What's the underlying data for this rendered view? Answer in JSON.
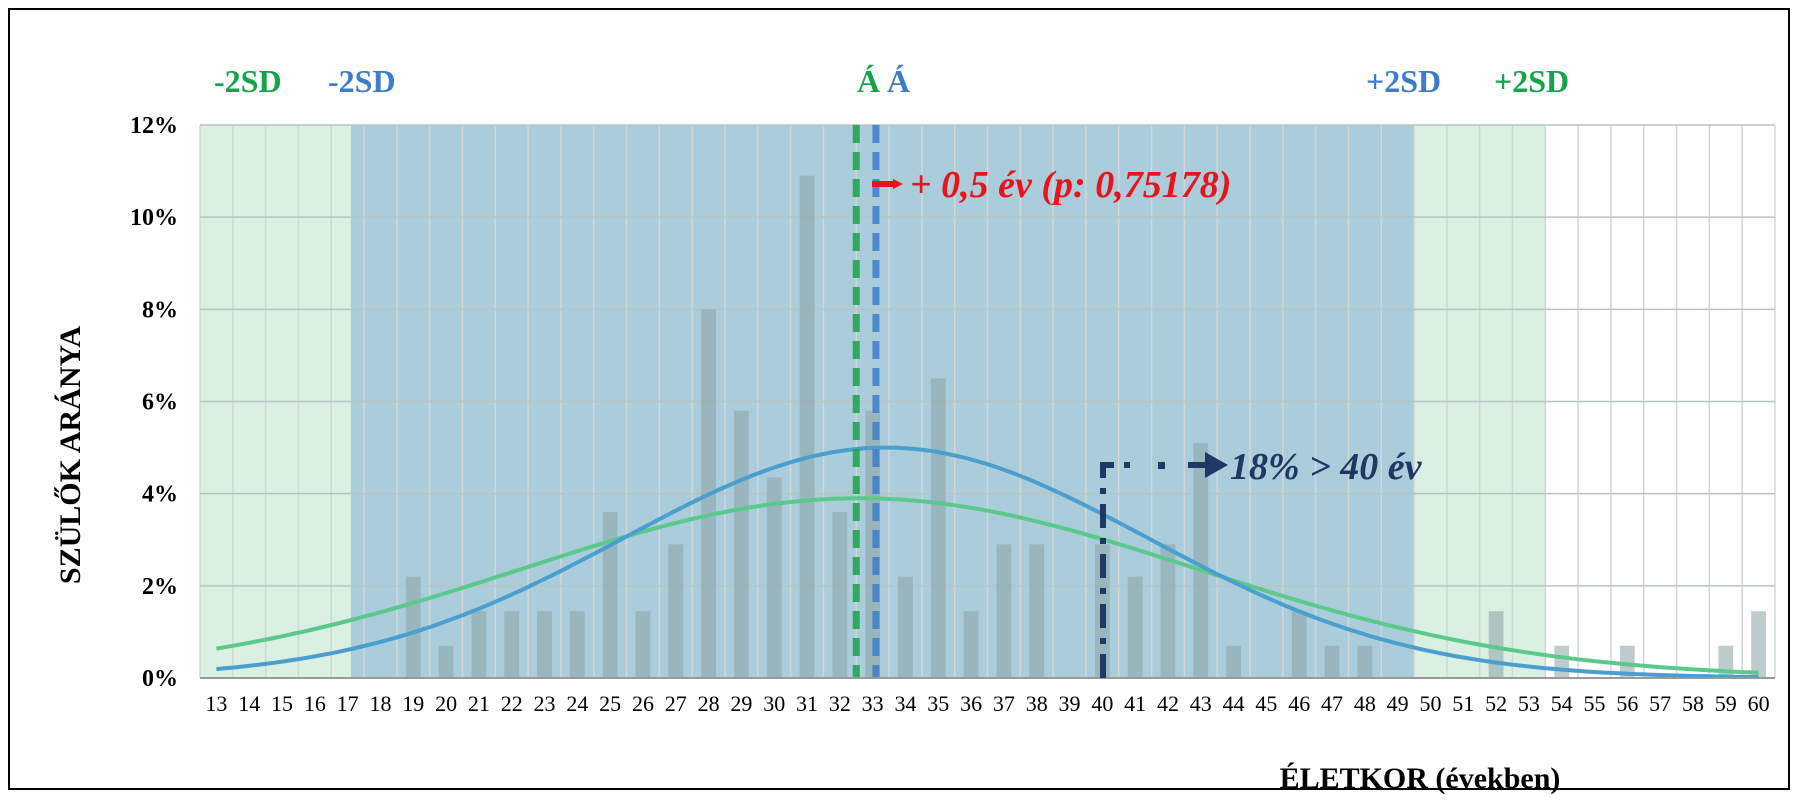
{
  "chart_data": {
    "type": "bar",
    "ylabel": "SZÜLŐK ARÁNYA",
    "xlabel": "ÉLETKOR (években)",
    "ylim": [
      0,
      12
    ],
    "y_ticks": [
      0,
      2,
      4,
      6,
      8,
      10,
      12
    ],
    "y_tick_suffix": "%",
    "grid": true,
    "categories": [
      13,
      14,
      15,
      16,
      17,
      18,
      19,
      20,
      21,
      22,
      23,
      24,
      25,
      26,
      27,
      28,
      29,
      30,
      31,
      32,
      33,
      34,
      35,
      36,
      37,
      38,
      39,
      40,
      41,
      42,
      43,
      44,
      45,
      46,
      47,
      48,
      49,
      50,
      51,
      52,
      53,
      54,
      55,
      56,
      57,
      58,
      59,
      60
    ],
    "values": [
      0,
      0,
      0,
      0,
      0,
      0,
      2.2,
      0.7,
      1.45,
      1.45,
      1.45,
      1.45,
      3.6,
      1.45,
      2.9,
      8.0,
      5.8,
      4.35,
      10.9,
      3.6,
      5.8,
      2.2,
      6.5,
      1.45,
      2.9,
      2.9,
      0,
      2.9,
      2.2,
      2.9,
      5.1,
      0.7,
      0,
      1.45,
      0.7,
      0.7,
      0,
      0,
      0,
      1.45,
      0,
      0.7,
      0,
      0.7,
      0,
      0,
      0.7,
      1.45
    ],
    "series": [
      {
        "type": "normal-curve",
        "mean": 32.6,
        "sd": 10.3,
        "peak": 3.9,
        "color": "#5cc98c"
      },
      {
        "type": "normal-curve",
        "mean": 33.4,
        "sd": 8.0,
        "peak": 5.0,
        "color": "#4b9fcf"
      }
    ],
    "bands": [
      {
        "label_left": "-2SD",
        "label_right": "+2SD",
        "from": 12.5,
        "to": 53.5,
        "color": "#17a34a"
      },
      {
        "label_left": "-2SD",
        "label_right": "+2SD",
        "from": 17.1,
        "to": 49.5,
        "color": "#3d7cc9"
      }
    ],
    "mean_lines": [
      {
        "label": "Á",
        "x": 32.5,
        "color": "#17a34a"
      },
      {
        "label": "Á",
        "x": 33.1,
        "color": "#3d7cc9"
      }
    ],
    "annotations": [
      {
        "text": "+ 0,5 év (p: 0,75178)",
        "color": "#e8141b"
      },
      {
        "text": "18% > 40 év",
        "color": "#1f3864"
      }
    ]
  }
}
